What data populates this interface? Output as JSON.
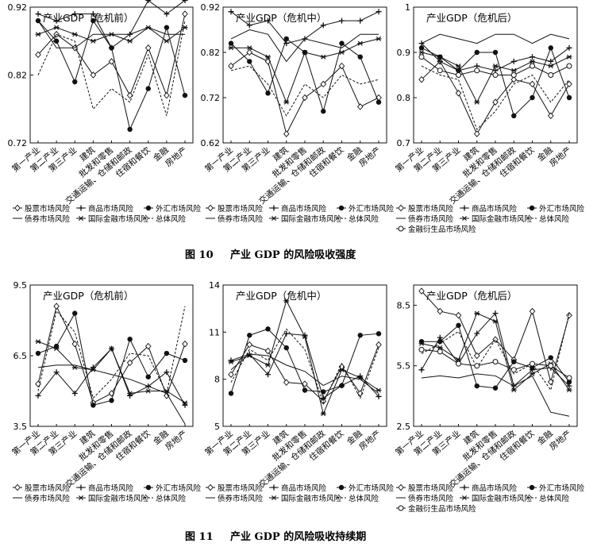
{
  "figures": [
    {
      "caption_num": "图 10",
      "caption_text": "产业 GDP 的风险吸收强度",
      "panels": [
        {
          "title": "产业GDP（危机前）",
          "ylim": [
            0.72,
            0.92
          ],
          "yticks": [
            "0.92",
            "0.82",
            "0.72"
          ],
          "legend": [
            "股票市场风险",
            "商品市场风险",
            "外汇市场风险",
            "债券市场风险",
            "国际金融市场风险",
            "总体风险"
          ]
        },
        {
          "title": "产业GDP（危机中）",
          "ylim": [
            0.62,
            0.92
          ],
          "yticks": [
            "0.92",
            "0.82",
            "0.72",
            "0.62"
          ],
          "legend": [
            "股票市场风险",
            "商品市场风险",
            "外汇市场风险",
            "债券市场风险",
            "国际金融市场风险",
            "总体风险"
          ]
        },
        {
          "title": "产业GDP（危机后）",
          "ylim": [
            0.7,
            1.0
          ],
          "yticks": [
            "1",
            "0.9",
            "0.8",
            "0.7"
          ],
          "legend": [
            "股票市场风险",
            "商品市场风险",
            "外汇市场风险",
            "债券市场风险",
            "国际金融市场风险",
            "总体风险",
            "金融衍生品市场风险"
          ]
        }
      ]
    },
    {
      "caption_num": "图 11",
      "caption_text": "产业 GDP 的风险吸收持续期",
      "panels": [
        {
          "title": "产业GDP（危机前）",
          "ylim": [
            3.5,
            9.5
          ],
          "yticks": [
            "9.5",
            "6.5",
            "3.5"
          ],
          "legend": [
            "股票市场风险",
            "商品市场风险",
            "外汇市场风险",
            "债券市场风险",
            "国际金融市场风险",
            "总体风险"
          ]
        },
        {
          "title": "产业GDP（危机中）",
          "ylim": [
            5,
            14
          ],
          "yticks": [
            "14",
            "11",
            "8",
            "5"
          ],
          "legend": [
            "股票市场风险",
            "商品市场风险",
            "外汇市场风险",
            "债券市场风险",
            "国际金融市场风险",
            "总体风险"
          ]
        },
        {
          "title": "产业GDP（危机后）",
          "ylim": [
            2.5,
            9.5
          ],
          "yticks": [
            "8.5",
            "5.5",
            "2.5"
          ],
          "legend": [
            "股票市场风险",
            "商品市场风险",
            "外汇市场风险",
            "债券市场风险",
            "国际金融市场风险",
            "总体风险",
            "金融衍生品市场风险"
          ]
        }
      ]
    }
  ],
  "categories": [
    "第一产业",
    "第二产业",
    "第三产业",
    "建筑",
    "批发和零售",
    "交通运输、仓储和邮政",
    "住宿和餐饮",
    "金融",
    "房地产"
  ],
  "chart_data": [
    {
      "type": "line",
      "title": "产业GDP（危机前）",
      "ylim": [
        0.72,
        0.92
      ],
      "categories": [
        "第一产业",
        "第二产业",
        "第三产业",
        "建筑",
        "批发和零售",
        "交通运输、仓储和邮政",
        "住宿和餐饮",
        "金融",
        "房地产"
      ],
      "series": [
        {
          "name": "股票市场风险",
          "values": [
            0.85,
            0.88,
            0.86,
            0.82,
            0.84,
            0.79,
            0.86,
            0.79,
            0.91
          ]
        },
        {
          "name": "商品市场风险",
          "values": [
            0.91,
            0.9,
            0.91,
            0.91,
            0.86,
            0.88,
            0.93,
            0.91,
            0.93
          ]
        },
        {
          "name": "外汇市场风险",
          "values": [
            0.9,
            0.87,
            0.81,
            0.9,
            0.86,
            0.74,
            0.8,
            0.89,
            0.79
          ]
        },
        {
          "name": "债券市场风险",
          "values": [
            0.9,
            0.86,
            0.86,
            0.88,
            0.88,
            0.88,
            0.89,
            0.88,
            0.88
          ]
        },
        {
          "name": "国际金融市场风险",
          "values": [
            0.88,
            0.89,
            0.88,
            0.87,
            0.88,
            0.87,
            0.89,
            0.87,
            0.89
          ]
        },
        {
          "name": "总体风险",
          "values": [
            0.82,
            0.88,
            0.87,
            0.77,
            0.8,
            0.78,
            0.85,
            0.76,
            0.9
          ]
        }
      ]
    },
    {
      "type": "line",
      "title": "产业GDP（危机中）",
      "ylim": [
        0.62,
        0.92
      ],
      "categories": [
        "第一产业",
        "第二产业",
        "第三产业",
        "建筑",
        "批发和零售",
        "交通运输、仓储和邮政",
        "住宿和餐饮",
        "金融",
        "房地产"
      ],
      "series": [
        {
          "name": "股票市场风险",
          "values": [
            0.79,
            0.82,
            0.8,
            0.64,
            0.72,
            0.75,
            0.79,
            0.7,
            0.72
          ]
        },
        {
          "name": "商品市场风险",
          "values": [
            0.91,
            0.88,
            0.89,
            0.84,
            0.85,
            0.88,
            0.89,
            0.89,
            0.91
          ]
        },
        {
          "name": "外汇市场风险",
          "values": [
            0.84,
            0.8,
            0.73,
            0.85,
            0.82,
            0.69,
            0.84,
            0.81,
            0.71
          ]
        },
        {
          "name": "债券市场风险",
          "values": [
            0.85,
            0.87,
            0.86,
            0.8,
            0.85,
            0.84,
            0.83,
            0.86,
            0.86
          ]
        },
        {
          "name": "国际金融市场风险",
          "values": [
            0.83,
            0.83,
            0.81,
            0.71,
            0.82,
            0.81,
            0.82,
            0.84,
            0.85
          ]
        },
        {
          "name": "总体风险",
          "values": [
            0.78,
            0.79,
            0.75,
            0.68,
            0.75,
            0.72,
            0.77,
            0.75,
            0.76
          ]
        }
      ]
    },
    {
      "type": "line",
      "title": "产业GDP（危机后）",
      "ylim": [
        0.7,
        1.0
      ],
      "categories": [
        "第一产业",
        "第二产业",
        "第三产业",
        "建筑",
        "批发和零售",
        "交通运输、仓储和邮政",
        "住宿和餐饮",
        "金融",
        "房地产"
      ],
      "series": [
        {
          "name": "股票市场风险",
          "values": [
            0.84,
            0.88,
            0.81,
            0.72,
            0.79,
            0.84,
            0.83,
            0.76,
            0.83
          ]
        },
        {
          "name": "商品市场风险",
          "values": [
            0.92,
            0.88,
            0.86,
            0.87,
            0.86,
            0.88,
            0.89,
            0.88,
            0.91
          ]
        },
        {
          "name": "外汇市场风险",
          "values": [
            0.91,
            0.89,
            0.86,
            0.9,
            0.9,
            0.76,
            0.8,
            0.91,
            0.8
          ]
        },
        {
          "name": "债券市场风险",
          "values": [
            0.92,
            0.94,
            0.93,
            0.92,
            0.94,
            0.94,
            0.92,
            0.94,
            0.93
          ]
        },
        {
          "name": "国际金融市场风险",
          "values": [
            0.9,
            0.89,
            0.87,
            0.79,
            0.87,
            0.86,
            0.88,
            0.87,
            0.89
          ]
        },
        {
          "name": "总体风险",
          "values": [
            0.87,
            0.85,
            0.84,
            0.73,
            0.77,
            0.83,
            0.85,
            0.79,
            0.84
          ]
        },
        {
          "name": "金融衍生品市场风险",
          "values": [
            0.89,
            0.86,
            0.85,
            0.86,
            0.85,
            0.85,
            0.87,
            0.85,
            0.87
          ]
        }
      ]
    },
    {
      "type": "line",
      "title": "产业GDP（危机前）",
      "ylim": [
        3.5,
        9.5
      ],
      "categories": [
        "第一产业",
        "第二产业",
        "第三产业",
        "建筑",
        "批发和零售",
        "交通运输、仓储和邮政",
        "住宿和餐饮",
        "金融",
        "房地产"
      ],
      "series": [
        {
          "name": "股票市场风险",
          "values": [
            5.3,
            8.6,
            7.0,
            4.5,
            4.9,
            6.2,
            6.9,
            4.8,
            7.0
          ]
        },
        {
          "name": "商品市场风险",
          "values": [
            4.8,
            5.8,
            4.9,
            6.0,
            6.8,
            4.8,
            5.2,
            5.8,
            4.4
          ]
        },
        {
          "name": "外汇市场风险",
          "values": [
            6.6,
            6.9,
            8.3,
            4.4,
            4.6,
            7.2,
            5.6,
            6.6,
            6.3
          ]
        },
        {
          "name": "债券市场风险",
          "values": [
            6.0,
            6.1,
            6.1,
            5.9,
            5.7,
            5.5,
            5.2,
            4.9,
            3.6
          ]
        },
        {
          "name": "国际金融市场风险",
          "values": [
            7.1,
            6.8,
            6.0,
            5.9,
            6.8,
            4.9,
            5.0,
            5.0,
            4.5
          ]
        },
        {
          "name": "总体风险",
          "values": [
            5.0,
            8.4,
            7.5,
            4.7,
            5.5,
            6.6,
            6.5,
            4.9,
            8.6
          ]
        }
      ]
    },
    {
      "type": "line",
      "title": "产业GDP（危机中）",
      "ylim": [
        5,
        14
      ],
      "categories": [
        "第一产业",
        "第二产业",
        "第三产业",
        "建筑",
        "批发和零售",
        "交通运输、仓储和邮政",
        "住宿和餐饮",
        "金融",
        "房地产"
      ],
      "series": [
        {
          "name": "股票市场风险",
          "values": [
            8.3,
            10.2,
            9.8,
            7.8,
            7.7,
            6.6,
            8.8,
            7.1,
            10.2
          ]
        },
        {
          "name": "商品市场风险",
          "values": [
            9.2,
            9.6,
            8.3,
            10.9,
            10.8,
            6.8,
            7.6,
            8.2,
            6.9
          ]
        },
        {
          "name": "外汇市场风险",
          "values": [
            7.1,
            10.8,
            11.2,
            10.0,
            7.3,
            7.2,
            7.6,
            10.8,
            10.9
          ]
        },
        {
          "name": "债券市场风险",
          "values": [
            8.6,
            9.6,
            9.5,
            8.9,
            8.5,
            7.6,
            8.2,
            8.0,
            7.1
          ]
        },
        {
          "name": "国际金融市场风险",
          "values": [
            9.1,
            9.5,
            8.9,
            13.0,
            10.7,
            5.8,
            8.6,
            8.1,
            7.3
          ]
        },
        {
          "name": "总体风险",
          "values": [
            7.8,
            9.9,
            9.2,
            11.2,
            9.9,
            6.5,
            9.0,
            6.8,
            10.0
          ]
        }
      ]
    },
    {
      "type": "line",
      "title": "产业GDP（危机后）",
      "ylim": [
        2.5,
        9.5
      ],
      "categories": [
        "第一产业",
        "第二产业",
        "第三产业",
        "建筑",
        "批发和零售",
        "交通运输、仓储和邮政",
        "住宿和餐饮",
        "金融",
        "房地产"
      ],
      "series": [
        {
          "name": "股票市场风险",
          "values": [
            9.2,
            8.2,
            8.0,
            6.0,
            6.8,
            5.8,
            8.2,
            4.7,
            8.0
          ]
        },
        {
          "name": "商品市场风险",
          "values": [
            5.3,
            6.9,
            5.6,
            7.1,
            8.1,
            4.5,
            5.3,
            5.4,
            4.5
          ]
        },
        {
          "name": "外汇市场风险",
          "values": [
            6.7,
            6.7,
            7.5,
            4.5,
            4.4,
            5.7,
            5.4,
            5.9,
            4.7
          ]
        },
        {
          "name": "债券市场风险",
          "values": [
            4.9,
            5.0,
            4.9,
            5.1,
            5.0,
            4.5,
            5.0,
            3.2,
            3.0
          ]
        },
        {
          "name": "国际金融市场风险",
          "values": [
            6.6,
            6.4,
            5.8,
            8.1,
            7.7,
            4.3,
            5.1,
            5.6,
            4.3
          ]
        },
        {
          "name": "总体风险",
          "values": [
            6.1,
            6.6,
            7.2,
            5.4,
            6.8,
            5.1,
            5.6,
            4.3,
            8.1
          ]
        },
        {
          "name": "金融衍生品市场风险",
          "values": [
            6.3,
            6.2,
            5.6,
            5.5,
            5.7,
            5.3,
            5.6,
            5.5,
            4.9
          ]
        }
      ]
    }
  ]
}
